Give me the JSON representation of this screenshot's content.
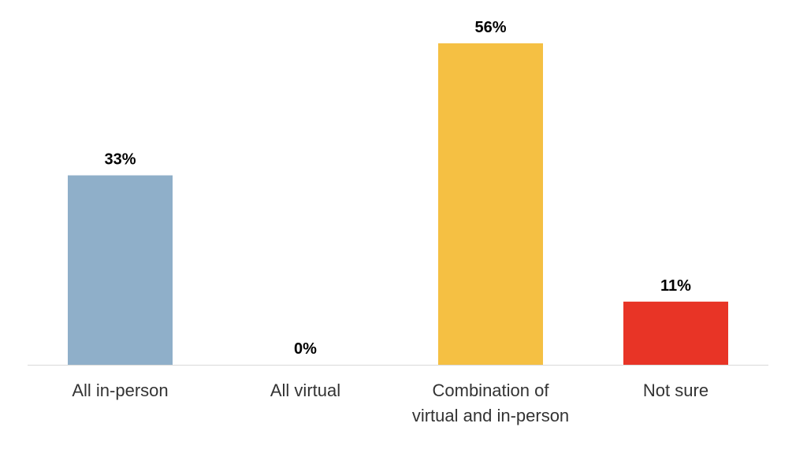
{
  "chart_data": {
    "type": "bar",
    "categories": [
      "All in-person",
      "All virtual",
      "Combination of\nvirtual and in-person",
      "Not sure"
    ],
    "values": [
      33,
      0,
      56,
      11
    ],
    "value_labels": [
      "33%",
      "0%",
      "56%",
      "11%"
    ],
    "colors": [
      "#8fafc9",
      null,
      "#f5c043",
      "#e83426"
    ]
  }
}
